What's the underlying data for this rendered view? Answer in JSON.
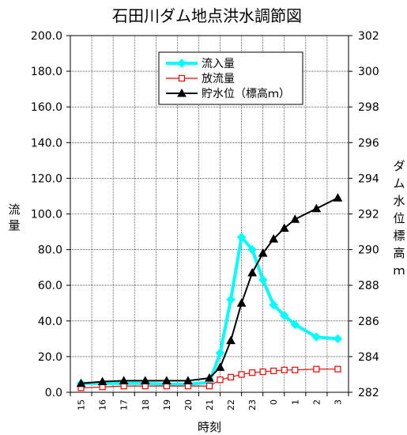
{
  "chart_data": {
    "type": "line",
    "title": "石田川ダム地点洪水調節図",
    "xlabel": "時刻",
    "ylabel_left": "流量",
    "ylabel_right": "ダム水位標高ｍ",
    "categories": [
      "15",
      "16",
      "17",
      "18",
      "19",
      "20",
      "21",
      "22",
      "23",
      "0",
      "1",
      "2",
      "3"
    ],
    "x_ticks": [
      "15",
      "16",
      "17",
      "18",
      "19",
      "20",
      "21",
      "22",
      "23",
      "0",
      "1",
      "2",
      "3"
    ],
    "y_left": {
      "min": 0,
      "max": 200,
      "step": 20,
      "ticks": [
        "0.0",
        "20.0",
        "40.0",
        "60.0",
        "80.0",
        "100.0",
        "120.0",
        "140.0",
        "160.0",
        "180.0",
        "200.0"
      ]
    },
    "y_right": {
      "min": 282,
      "max": 302,
      "step": 2,
      "ticks": [
        "282",
        "284",
        "286",
        "288",
        "290",
        "292",
        "294",
        "296",
        "298",
        "300",
        "302"
      ]
    },
    "grid": true,
    "legend_position": "top-center",
    "series": [
      {
        "name": "流入量",
        "axis": "left",
        "color": "#00FFFF",
        "marker": "diamond",
        "points": [
          [
            0,
            5
          ],
          [
            1,
            5
          ],
          [
            2,
            5
          ],
          [
            3,
            5
          ],
          [
            4,
            4.5
          ],
          [
            5,
            4.5
          ],
          [
            6,
            5.5
          ],
          [
            6.5,
            22
          ],
          [
            7,
            52
          ],
          [
            7.5,
            87
          ],
          [
            8,
            80
          ],
          [
            8.5,
            63
          ],
          [
            9,
            49
          ],
          [
            9.5,
            43
          ],
          [
            10,
            38
          ],
          [
            11,
            31
          ],
          [
            12,
            30
          ]
        ]
      },
      {
        "name": "放流量",
        "axis": "left",
        "color": "#FF0000",
        "marker": "square-open",
        "points": [
          [
            0,
            2.5
          ],
          [
            1,
            3
          ],
          [
            2,
            3.5
          ],
          [
            3,
            3.5
          ],
          [
            4,
            3.5
          ],
          [
            5,
            3.5
          ],
          [
            6,
            3.5
          ],
          [
            6.5,
            7
          ],
          [
            7,
            8.5
          ],
          [
            7.5,
            10
          ],
          [
            8,
            11
          ],
          [
            8.5,
            11.5
          ],
          [
            9,
            12
          ],
          [
            9.5,
            12.5
          ],
          [
            10,
            12.5
          ],
          [
            11,
            13
          ],
          [
            12,
            13
          ]
        ]
      },
      {
        "name": "貯水位（標高ｍ）",
        "axis": "right",
        "color": "#000000",
        "marker": "triangle",
        "points": [
          [
            0,
            282.5
          ],
          [
            1,
            282.6
          ],
          [
            2,
            282.65
          ],
          [
            3,
            282.65
          ],
          [
            4,
            282.65
          ],
          [
            5,
            282.65
          ],
          [
            6,
            282.8
          ],
          [
            6.5,
            283.4
          ],
          [
            7,
            284.9
          ],
          [
            7.5,
            287.0
          ],
          [
            8,
            288.7
          ],
          [
            8.5,
            289.8
          ],
          [
            9,
            290.6
          ],
          [
            9.5,
            291.2
          ],
          [
            10,
            291.7
          ],
          [
            11,
            292.3
          ],
          [
            12,
            292.9
          ]
        ]
      }
    ]
  }
}
